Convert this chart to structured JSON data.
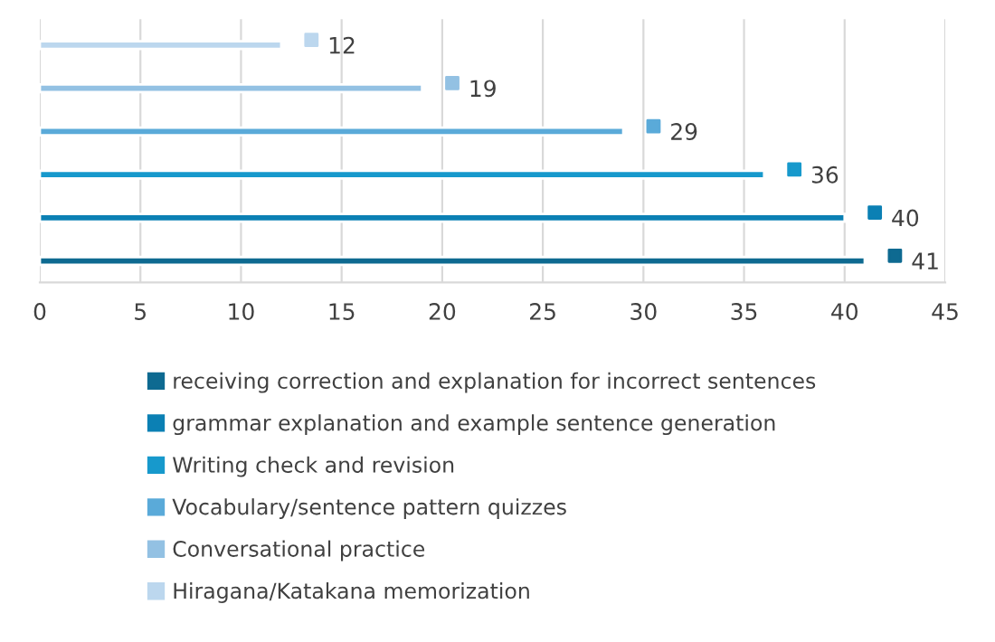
{
  "chart_data": {
    "type": "bar",
    "orientation": "horizontal",
    "categories": [
      null,
      null,
      null,
      null,
      null,
      null
    ],
    "series": [
      {
        "name": "receiving correction and explanation for incorrect sentences",
        "color": "#0e6a91",
        "values": [
          null,
          null,
          null,
          null,
          null,
          41
        ]
      },
      {
        "name": "grammar explanation and example sentence generation",
        "color": "#0b80b4",
        "values": [
          null,
          null,
          null,
          null,
          40,
          null
        ]
      },
      {
        "name": "Writing check and revision",
        "color": "#1799cc",
        "values": [
          null,
          null,
          null,
          36,
          null,
          null
        ]
      },
      {
        "name": "Vocabulary/sentence pattern quizzes",
        "color": "#5aaad9",
        "values": [
          null,
          null,
          29,
          null,
          null,
          null
        ]
      },
      {
        "name": "Conversational practice",
        "color": "#93c1e3",
        "values": [
          null,
          19,
          null,
          null,
          null,
          null
        ]
      },
      {
        "name": "Hiragana/Katakana memorization",
        "color": "#bcd7ee",
        "values": [
          12,
          null,
          null,
          null,
          null,
          null
        ]
      }
    ],
    "xlim": [
      0,
      45
    ],
    "xticks": [
      0,
      5,
      10,
      15,
      20,
      25,
      30,
      35,
      40,
      45
    ],
    "grid": "x",
    "legend": "bottom",
    "data_labels": true
  }
}
